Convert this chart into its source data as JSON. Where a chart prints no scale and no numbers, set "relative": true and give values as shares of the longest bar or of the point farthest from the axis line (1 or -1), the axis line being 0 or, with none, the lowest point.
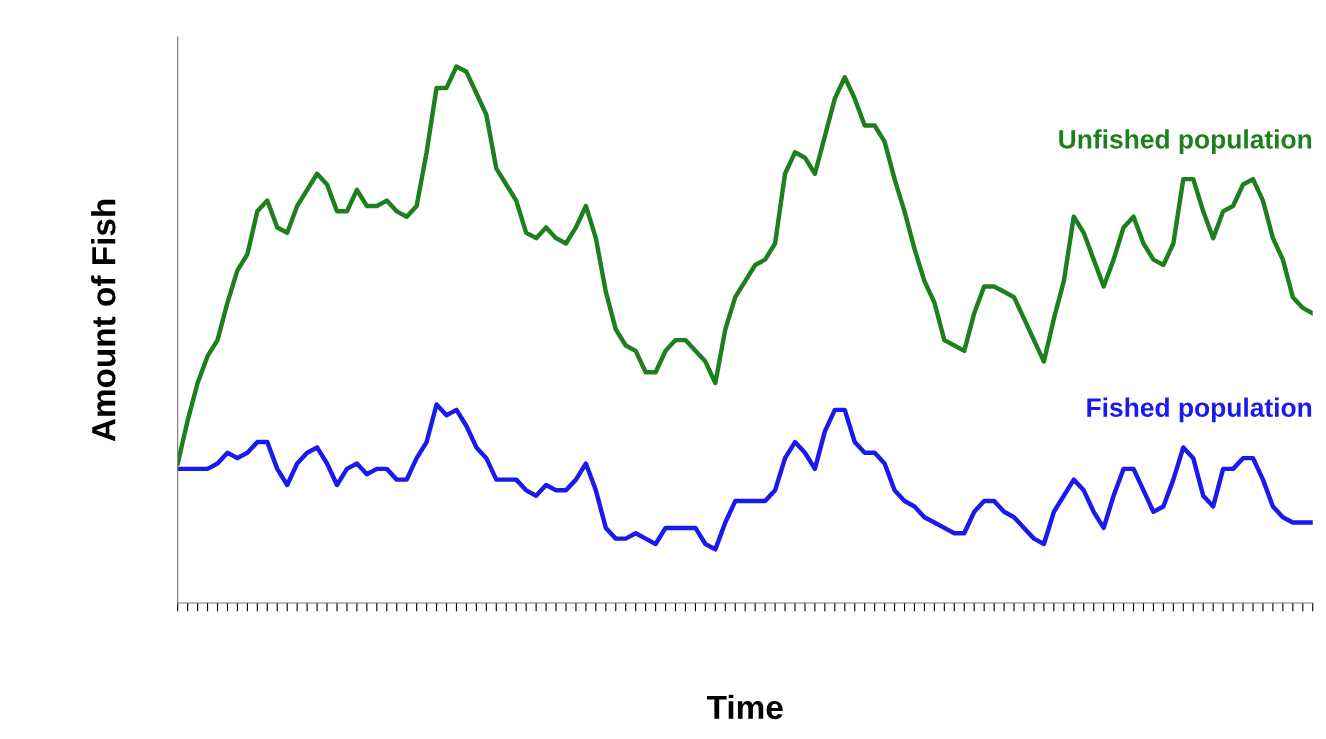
{
  "chart_data": {
    "type": "line",
    "relative": true,
    "xlabel": "Time",
    "ylabel": "Amount of Fish",
    "tick_labels": false,
    "grid": false,
    "legend": false,
    "marker": "none",
    "line_style": "solid",
    "categories": [
      null,
      null,
      null,
      null,
      null,
      null,
      null,
      null,
      null,
      null,
      null,
      null,
      null,
      null,
      null,
      null,
      null,
      null,
      null,
      null,
      null,
      null,
      null,
      null,
      null,
      null,
      null,
      null,
      null,
      null,
      null,
      null,
      null,
      null,
      null,
      null,
      null,
      null,
      null,
      null,
      null,
      null,
      null,
      null,
      null,
      null,
      null,
      null,
      null,
      null,
      null,
      null,
      null,
      null,
      null,
      null,
      null,
      null,
      null,
      null,
      null,
      null,
      null,
      null,
      null,
      null,
      null,
      null,
      null,
      null,
      null,
      null,
      null,
      null,
      null,
      null,
      null,
      null,
      null,
      null,
      null,
      null,
      null,
      null,
      null,
      null,
      null,
      null,
      null,
      null,
      null,
      null,
      null,
      null,
      null,
      null,
      null,
      null,
      null,
      null,
      null,
      null,
      null,
      null,
      null,
      null,
      null,
      null,
      null,
      null,
      null,
      null,
      null,
      null,
      null
    ],
    "series": [
      {
        "name": "Unfished population",
        "color": "#1e7f1e",
        "values": [
          0.26,
          0.34,
          0.41,
          0.46,
          0.49,
          0.56,
          0.62,
          0.65,
          0.73,
          0.75,
          0.7,
          0.69,
          0.74,
          0.77,
          0.8,
          0.78,
          0.73,
          0.73,
          0.77,
          0.74,
          0.74,
          0.75,
          0.73,
          0.72,
          0.74,
          0.84,
          0.96,
          0.96,
          1.0,
          0.99,
          0.95,
          0.91,
          0.81,
          0.78,
          0.75,
          0.69,
          0.68,
          0.7,
          0.68,
          0.67,
          0.7,
          0.74,
          0.68,
          0.58,
          0.51,
          0.48,
          0.47,
          0.43,
          0.43,
          0.47,
          0.49,
          0.49,
          0.47,
          0.45,
          0.41,
          0.51,
          0.57,
          0.6,
          0.63,
          0.64,
          0.67,
          0.8,
          0.84,
          0.83,
          0.8,
          0.87,
          0.94,
          0.98,
          0.94,
          0.89,
          0.89,
          0.86,
          0.79,
          0.73,
          0.66,
          0.6,
          0.56,
          0.49,
          0.48,
          0.47,
          0.54,
          0.59,
          0.59,
          0.58,
          0.57,
          0.53,
          0.49,
          0.45,
          0.53,
          0.6,
          0.72,
          0.69,
          0.64,
          0.59,
          0.64,
          0.7,
          0.72,
          0.67,
          0.64,
          0.63,
          0.67,
          0.79,
          0.79,
          0.73,
          0.68,
          0.73,
          0.74,
          0.78,
          0.79,
          0.75,
          0.68,
          0.64,
          0.57,
          0.55,
          0.54
        ]
      },
      {
        "name": "Fished population",
        "color": "#1a1aee",
        "values": [
          0.25,
          0.25,
          0.25,
          0.25,
          0.26,
          0.28,
          0.27,
          0.28,
          0.3,
          0.3,
          0.25,
          0.22,
          0.26,
          0.28,
          0.29,
          0.26,
          0.22,
          0.25,
          0.26,
          0.24,
          0.25,
          0.25,
          0.23,
          0.23,
          0.27,
          0.3,
          0.37,
          0.35,
          0.36,
          0.33,
          0.29,
          0.27,
          0.23,
          0.23,
          0.23,
          0.21,
          0.2,
          0.22,
          0.21,
          0.21,
          0.23,
          0.26,
          0.21,
          0.14,
          0.12,
          0.12,
          0.13,
          0.12,
          0.11,
          0.14,
          0.14,
          0.14,
          0.14,
          0.11,
          0.1,
          0.15,
          0.19,
          0.19,
          0.19,
          0.19,
          0.21,
          0.27,
          0.3,
          0.28,
          0.25,
          0.32,
          0.36,
          0.36,
          0.3,
          0.28,
          0.28,
          0.26,
          0.21,
          0.19,
          0.18,
          0.16,
          0.15,
          0.14,
          0.13,
          0.13,
          0.17,
          0.19,
          0.19,
          0.17,
          0.16,
          0.14,
          0.12,
          0.11,
          0.17,
          0.2,
          0.23,
          0.21,
          0.17,
          0.14,
          0.2,
          0.25,
          0.25,
          0.21,
          0.17,
          0.18,
          0.23,
          0.29,
          0.27,
          0.2,
          0.18,
          0.25,
          0.25,
          0.27,
          0.27,
          0.23,
          0.18,
          0.16,
          0.15,
          0.15,
          0.15
        ]
      }
    ]
  }
}
